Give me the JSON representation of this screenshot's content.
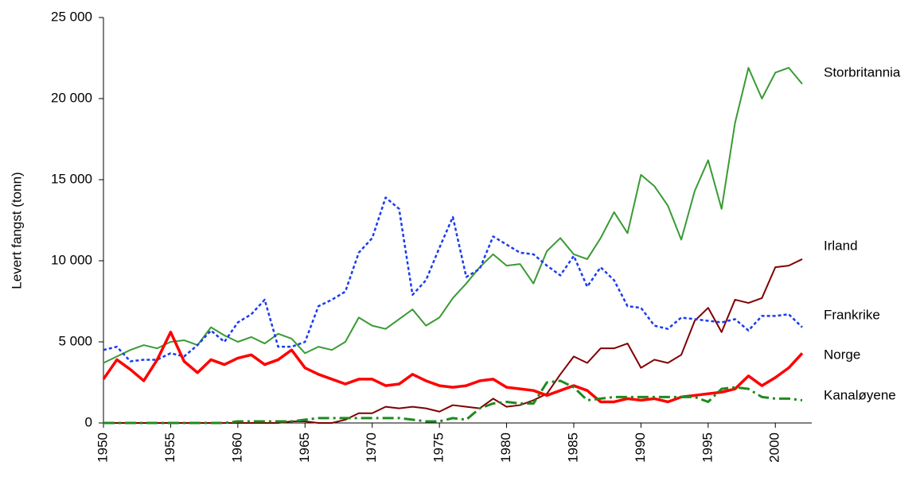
{
  "chart_data": {
    "type": "line",
    "y_label": "Levert fangst (tonn)",
    "x": [
      1950,
      1951,
      1952,
      1953,
      1954,
      1955,
      1956,
      1957,
      1958,
      1959,
      1960,
      1961,
      1962,
      1963,
      1964,
      1965,
      1966,
      1967,
      1968,
      1969,
      1970,
      1971,
      1972,
      1973,
      1974,
      1975,
      1976,
      1977,
      1978,
      1979,
      1980,
      1981,
      1982,
      1983,
      1984,
      1985,
      1986,
      1987,
      1988,
      1989,
      1990,
      1991,
      1992,
      1993,
      1994,
      1995,
      1996,
      1997,
      1998,
      1999,
      2000,
      2001,
      2002
    ],
    "xlim": [
      1950,
      2002
    ],
    "xticks": [
      1950,
      1955,
      1960,
      1965,
      1970,
      1975,
      1980,
      1985,
      1990,
      1995,
      2000
    ],
    "ylim": [
      0,
      25000
    ],
    "yticks": [
      {
        "value": 0,
        "label": "0"
      },
      {
        "value": 5000,
        "label": "5 000"
      },
      {
        "value": 10000,
        "label": "10 000"
      },
      {
        "value": 15000,
        "label": "15 000"
      },
      {
        "value": 20000,
        "label": "20 000"
      },
      {
        "value": 25000,
        "label": "25 000"
      }
    ],
    "series": [
      {
        "name": "Storbritannia",
        "color": "#3a9a34",
        "dash": "solid",
        "width": 2,
        "values": [
          3700,
          4100,
          4500,
          4800,
          4600,
          5000,
          5100,
          4800,
          5900,
          5400,
          5000,
          5300,
          4900,
          5500,
          5200,
          4300,
          4700,
          4500,
          5000,
          6500,
          6000,
          5800,
          6400,
          7000,
          6000,
          6500,
          7700,
          8600,
          9600,
          10400,
          9700,
          9800,
          8600,
          10600,
          11400,
          10400,
          10100,
          11400,
          13000,
          11700,
          15300,
          14600,
          13400,
          11300,
          14300,
          16200,
          13200,
          18500,
          21900,
          20000,
          21600,
          21900,
          20900
        ]
      },
      {
        "name": "Irland",
        "color": "#800000",
        "dash": "solid",
        "width": 2,
        "values": [
          0,
          0,
          0,
          0,
          0,
          0,
          0,
          0,
          0,
          0,
          0,
          0,
          0,
          0,
          100,
          100,
          0,
          0,
          200,
          600,
          600,
          1000,
          900,
          1000,
          900,
          700,
          1100,
          1000,
          900,
          1500,
          1000,
          1100,
          1400,
          1800,
          3000,
          4100,
          3700,
          4600,
          4600,
          4900,
          3400,
          3900,
          3700,
          4200,
          6300,
          7100,
          5600,
          7600,
          7400,
          7700,
          9600,
          9700,
          10100
        ]
      },
      {
        "name": "Frankrike",
        "color": "#1a3cf0",
        "dash": "dotted",
        "width": 2.5,
        "values": [
          4500,
          4700,
          3800,
          3900,
          3900,
          4300,
          4100,
          4800,
          5700,
          5000,
          6200,
          6700,
          7600,
          4700,
          4700,
          5000,
          7200,
          7600,
          8100,
          10500,
          11400,
          13900,
          13200,
          7900,
          8800,
          10800,
          12700,
          9000,
          9500,
          11500,
          11000,
          10500,
          10400,
          9700,
          9100,
          10300,
          8400,
          9600,
          8800,
          7200,
          7100,
          6000,
          5800,
          6500,
          6400,
          6300,
          6200,
          6400,
          5700,
          6600,
          6600,
          6700,
          5900
        ]
      },
      {
        "name": "Norge",
        "color": "#ff0000",
        "dash": "solid",
        "width": 3.5,
        "values": [
          2700,
          3900,
          3300,
          2600,
          3900,
          5600,
          3800,
          3100,
          3900,
          3600,
          4000,
          4200,
          3600,
          3900,
          4500,
          3400,
          3000,
          2700,
          2400,
          2700,
          2700,
          2300,
          2400,
          3000,
          2600,
          2300,
          2200,
          2300,
          2600,
          2700,
          2200,
          2100,
          2000,
          1700,
          2000,
          2300,
          2000,
          1300,
          1300,
          1500,
          1400,
          1500,
          1300,
          1600,
          1700,
          1800,
          1900,
          2100,
          2900,
          2300,
          2800,
          3400,
          4300
        ]
      },
      {
        "name": "Kanaløyene",
        "color": "#1f8a1f",
        "dash": "dashdot",
        "width": 3,
        "values": [
          0,
          0,
          0,
          0,
          0,
          0,
          0,
          0,
          0,
          0,
          100,
          100,
          100,
          100,
          100,
          200,
          300,
          300,
          300,
          300,
          300,
          300,
          300,
          200,
          100,
          100,
          300,
          200,
          900,
          1200,
          1300,
          1200,
          1200,
          2500,
          2600,
          2200,
          1400,
          1500,
          1600,
          1600,
          1600,
          1600,
          1600,
          1600,
          1600,
          1300,
          2100,
          2200,
          2100,
          1600,
          1500,
          1500,
          1400
        ]
      }
    ]
  }
}
